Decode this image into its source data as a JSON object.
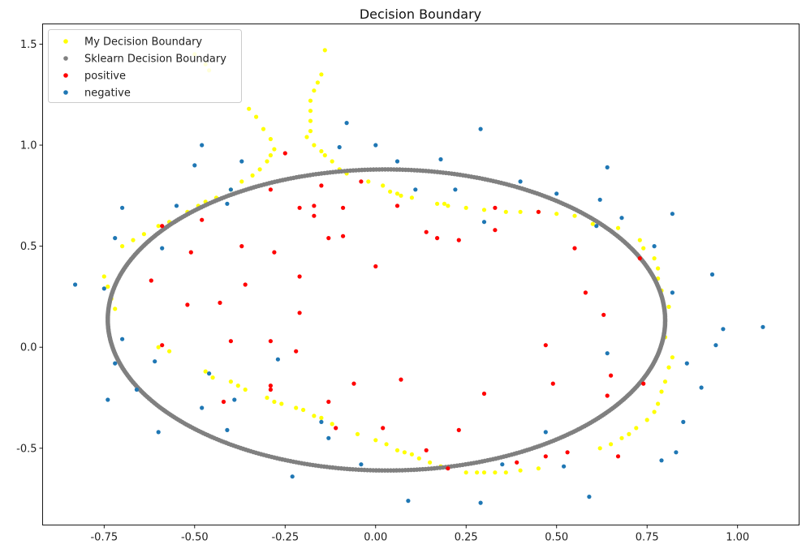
{
  "chart_data": {
    "type": "scatter",
    "title": "Decision Boundary",
    "xlabel": "",
    "ylabel": "",
    "xlim": [
      -0.92,
      1.17
    ],
    "ylim": [
      -0.88,
      1.6
    ],
    "x_ticks": [
      -0.75,
      -0.5,
      -0.25,
      0.0,
      0.25,
      0.5,
      0.75,
      1.0
    ],
    "y_ticks": [
      -0.5,
      0.0,
      0.5,
      1.0,
      1.5
    ],
    "grid": false,
    "legend_position": "top-left",
    "series": [
      {
        "name": "My Decision Boundary",
        "color": "#ffff00",
        "points": [
          [
            -0.47,
            1.4
          ],
          [
            -0.46,
            1.37
          ],
          [
            -0.5,
            1.45
          ],
          [
            -0.35,
            1.18
          ],
          [
            -0.33,
            1.14
          ],
          [
            -0.31,
            1.08
          ],
          [
            -0.29,
            1.03
          ],
          [
            -0.28,
            0.98
          ],
          [
            -0.29,
            0.95
          ],
          [
            -0.3,
            0.92
          ],
          [
            -0.32,
            0.88
          ],
          [
            -0.34,
            0.85
          ],
          [
            -0.37,
            0.82
          ],
          [
            -0.4,
            0.78
          ],
          [
            -0.44,
            0.74
          ],
          [
            -0.47,
            0.72
          ],
          [
            -0.49,
            0.7
          ],
          [
            -0.52,
            0.67
          ],
          [
            -0.57,
            0.62
          ],
          [
            -0.6,
            0.6
          ],
          [
            -0.64,
            0.56
          ],
          [
            -0.67,
            0.53
          ],
          [
            -0.7,
            0.5
          ],
          [
            -0.75,
            0.35
          ],
          [
            -0.74,
            0.3
          ],
          [
            -0.73,
            0.24
          ],
          [
            -0.72,
            0.19
          ],
          [
            -0.6,
            0.0
          ],
          [
            -0.57,
            -0.02
          ],
          [
            -0.47,
            -0.12
          ],
          [
            -0.45,
            -0.15
          ],
          [
            -0.4,
            -0.17
          ],
          [
            -0.38,
            -0.19
          ],
          [
            -0.36,
            -0.21
          ],
          [
            -0.3,
            -0.25
          ],
          [
            -0.28,
            -0.27
          ],
          [
            -0.26,
            -0.28
          ],
          [
            -0.22,
            -0.3
          ],
          [
            -0.2,
            -0.31
          ],
          [
            -0.17,
            -0.34
          ],
          [
            -0.15,
            -0.35
          ],
          [
            -0.12,
            -0.38
          ],
          [
            -0.05,
            -0.43
          ],
          [
            0.0,
            -0.46
          ],
          [
            0.03,
            -0.48
          ],
          [
            0.06,
            -0.51
          ],
          [
            0.08,
            -0.52
          ],
          [
            0.1,
            -0.53
          ],
          [
            0.12,
            -0.55
          ],
          [
            0.15,
            -0.57
          ],
          [
            0.18,
            -0.59
          ],
          [
            0.25,
            -0.62
          ],
          [
            0.28,
            -0.62
          ],
          [
            0.3,
            -0.62
          ],
          [
            0.33,
            -0.62
          ],
          [
            0.36,
            -0.62
          ],
          [
            0.4,
            -0.61
          ],
          [
            0.45,
            -0.6
          ],
          [
            0.62,
            -0.5
          ],
          [
            0.65,
            -0.48
          ],
          [
            0.68,
            -0.45
          ],
          [
            0.7,
            -0.43
          ],
          [
            0.72,
            -0.4
          ],
          [
            0.75,
            -0.36
          ],
          [
            0.77,
            -0.32
          ],
          [
            0.78,
            -0.28
          ],
          [
            0.79,
            -0.22
          ],
          [
            0.8,
            -0.17
          ],
          [
            0.81,
            -0.1
          ],
          [
            0.82,
            -0.05
          ],
          [
            0.8,
            0.05
          ],
          [
            0.8,
            0.12
          ],
          [
            0.81,
            0.2
          ],
          [
            0.79,
            0.28
          ],
          [
            0.78,
            0.34
          ],
          [
            0.78,
            0.39
          ],
          [
            0.77,
            0.44
          ],
          [
            0.74,
            0.49
          ],
          [
            0.73,
            0.53
          ],
          [
            0.67,
            0.59
          ],
          [
            0.6,
            0.61
          ],
          [
            0.55,
            0.65
          ],
          [
            0.5,
            0.66
          ],
          [
            0.45,
            0.67
          ],
          [
            0.4,
            0.67
          ],
          [
            0.36,
            0.67
          ],
          [
            0.3,
            0.68
          ],
          [
            0.25,
            0.69
          ],
          [
            0.2,
            0.7
          ],
          [
            0.19,
            0.71
          ],
          [
            0.17,
            0.71
          ],
          [
            0.1,
            0.74
          ],
          [
            0.07,
            0.75
          ],
          [
            0.06,
            0.76
          ],
          [
            0.04,
            0.77
          ],
          [
            0.02,
            0.8
          ],
          [
            -0.02,
            0.82
          ],
          [
            -0.08,
            0.86
          ],
          [
            -0.1,
            0.88
          ],
          [
            -0.12,
            0.92
          ],
          [
            -0.14,
            0.95
          ],
          [
            -0.15,
            0.97
          ],
          [
            -0.17,
            1.0
          ],
          [
            -0.19,
            1.04
          ],
          [
            -0.18,
            1.07
          ],
          [
            -0.18,
            1.12
          ],
          [
            -0.18,
            1.17
          ],
          [
            -0.18,
            1.22
          ],
          [
            -0.17,
            1.27
          ],
          [
            -0.16,
            1.31
          ],
          [
            -0.15,
            1.35
          ],
          [
            -0.14,
            1.47
          ]
        ]
      },
      {
        "name": "Sklearn Decision Boundary",
        "color": "#808080",
        "ellipse": {
          "cx": 0.03,
          "cy": 0.135,
          "rx": 0.77,
          "ry": 0.745,
          "angle_deg": -2.2
        }
      },
      {
        "name": "positive",
        "color": "#ff0000",
        "points": [
          [
            -0.25,
            0.96
          ],
          [
            -0.15,
            0.8
          ],
          [
            -0.29,
            0.78
          ],
          [
            -0.21,
            0.69
          ],
          [
            -0.17,
            0.7
          ],
          [
            -0.17,
            0.65
          ],
          [
            -0.09,
            0.69
          ],
          [
            -0.04,
            0.82
          ],
          [
            0.06,
            0.7
          ],
          [
            -0.48,
            0.63
          ],
          [
            -0.59,
            0.6
          ],
          [
            -0.51,
            0.47
          ],
          [
            -0.37,
            0.5
          ],
          [
            -0.28,
            0.47
          ],
          [
            -0.13,
            0.54
          ],
          [
            -0.09,
            0.55
          ],
          [
            0.14,
            0.57
          ],
          [
            0.17,
            0.54
          ],
          [
            0.23,
            0.53
          ],
          [
            0.33,
            0.69
          ],
          [
            0.33,
            0.58
          ],
          [
            0.45,
            0.67
          ],
          [
            0.55,
            0.49
          ],
          [
            0.73,
            0.44
          ],
          [
            -0.62,
            0.33
          ],
          [
            -0.36,
            0.31
          ],
          [
            -0.21,
            0.35
          ],
          [
            0.0,
            0.4
          ],
          [
            -0.43,
            0.22
          ],
          [
            -0.52,
            0.21
          ],
          [
            -0.21,
            0.17
          ],
          [
            0.58,
            0.27
          ],
          [
            0.63,
            0.16
          ],
          [
            -0.59,
            0.01
          ],
          [
            -0.4,
            0.03
          ],
          [
            -0.29,
            0.03
          ],
          [
            -0.22,
            -0.02
          ],
          [
            0.47,
            0.01
          ],
          [
            -0.29,
            -0.19
          ],
          [
            -0.06,
            -0.18
          ],
          [
            0.07,
            -0.16
          ],
          [
            0.49,
            -0.18
          ],
          [
            0.65,
            -0.14
          ],
          [
            0.74,
            -0.18
          ],
          [
            -0.29,
            -0.21
          ],
          [
            0.3,
            -0.23
          ],
          [
            0.64,
            -0.24
          ],
          [
            -0.42,
            -0.27
          ],
          [
            -0.13,
            -0.27
          ],
          [
            -0.11,
            -0.4
          ],
          [
            0.02,
            -0.4
          ],
          [
            0.23,
            -0.41
          ],
          [
            0.14,
            -0.51
          ],
          [
            0.47,
            -0.54
          ],
          [
            0.53,
            -0.52
          ],
          [
            0.39,
            -0.57
          ],
          [
            0.67,
            -0.54
          ],
          [
            0.2,
            -0.6
          ]
        ]
      },
      {
        "name": "negative",
        "color": "#1f77b4",
        "points": [
          [
            -0.08,
            1.11
          ],
          [
            0.29,
            1.08
          ],
          [
            -0.48,
            1.0
          ],
          [
            -0.1,
            0.99
          ],
          [
            0.0,
            1.0
          ],
          [
            0.18,
            0.93
          ],
          [
            -0.37,
            0.92
          ],
          [
            0.06,
            0.92
          ],
          [
            -0.5,
            0.9
          ],
          [
            0.64,
            0.89
          ],
          [
            0.4,
            0.82
          ],
          [
            0.11,
            0.78
          ],
          [
            0.22,
            0.78
          ],
          [
            0.5,
            0.76
          ],
          [
            -0.4,
            0.78
          ],
          [
            -0.55,
            0.7
          ],
          [
            -0.41,
            0.71
          ],
          [
            0.62,
            0.73
          ],
          [
            -0.7,
            0.69
          ],
          [
            0.82,
            0.66
          ],
          [
            0.68,
            0.64
          ],
          [
            0.3,
            0.62
          ],
          [
            0.61,
            0.6
          ],
          [
            -0.72,
            0.54
          ],
          [
            -0.59,
            0.49
          ],
          [
            0.77,
            0.5
          ],
          [
            -0.83,
            0.31
          ],
          [
            -0.75,
            0.29
          ],
          [
            0.93,
            0.36
          ],
          [
            0.82,
            0.27
          ],
          [
            -0.7,
            0.04
          ],
          [
            0.96,
            0.09
          ],
          [
            1.07,
            0.1
          ],
          [
            0.94,
            0.01
          ],
          [
            -0.61,
            -0.07
          ],
          [
            -0.72,
            -0.08
          ],
          [
            0.64,
            -0.03
          ],
          [
            -0.27,
            -0.06
          ],
          [
            0.86,
            -0.08
          ],
          [
            -0.46,
            -0.13
          ],
          [
            -0.66,
            -0.21
          ],
          [
            0.9,
            -0.2
          ],
          [
            -0.74,
            -0.26
          ],
          [
            -0.39,
            -0.26
          ],
          [
            -0.48,
            -0.3
          ],
          [
            -0.15,
            -0.37
          ],
          [
            0.85,
            -0.37
          ],
          [
            -0.41,
            -0.41
          ],
          [
            -0.6,
            -0.42
          ],
          [
            0.47,
            -0.42
          ],
          [
            -0.13,
            -0.45
          ],
          [
            0.83,
            -0.52
          ],
          [
            0.79,
            -0.56
          ],
          [
            0.35,
            -0.58
          ],
          [
            -0.04,
            -0.58
          ],
          [
            0.52,
            -0.59
          ],
          [
            -0.23,
            -0.64
          ],
          [
            0.09,
            -0.76
          ],
          [
            0.29,
            -0.77
          ],
          [
            0.59,
            -0.74
          ]
        ]
      }
    ]
  }
}
